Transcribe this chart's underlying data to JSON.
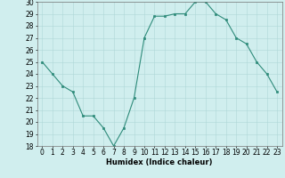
{
  "x": [
    0,
    1,
    2,
    3,
    4,
    5,
    6,
    7,
    8,
    9,
    10,
    11,
    12,
    13,
    14,
    15,
    16,
    17,
    18,
    19,
    20,
    21,
    22,
    23
  ],
  "y": [
    25,
    24,
    23,
    22.5,
    20.5,
    20.5,
    19.5,
    18,
    19.5,
    22,
    27,
    28.8,
    28.8,
    29,
    29,
    30,
    30,
    29,
    28.5,
    27,
    26.5,
    25,
    24,
    22.5
  ],
  "line_color": "#2e8b7a",
  "marker_color": "#2e8b7a",
  "bg_color": "#d0eeee",
  "grid_color": "#aed8d8",
  "xlabel": "Humidex (Indice chaleur)",
  "ylim": [
    18,
    30
  ],
  "yticks": [
    18,
    19,
    20,
    21,
    22,
    23,
    24,
    25,
    26,
    27,
    28,
    29,
    30
  ],
  "xticks": [
    0,
    1,
    2,
    3,
    4,
    5,
    6,
    7,
    8,
    9,
    10,
    11,
    12,
    13,
    14,
    15,
    16,
    17,
    18,
    19,
    20,
    21,
    22,
    23
  ],
  "xlabel_fontsize": 6.0,
  "tick_fontsize": 5.5,
  "xlim": [
    -0.5,
    23.5
  ]
}
